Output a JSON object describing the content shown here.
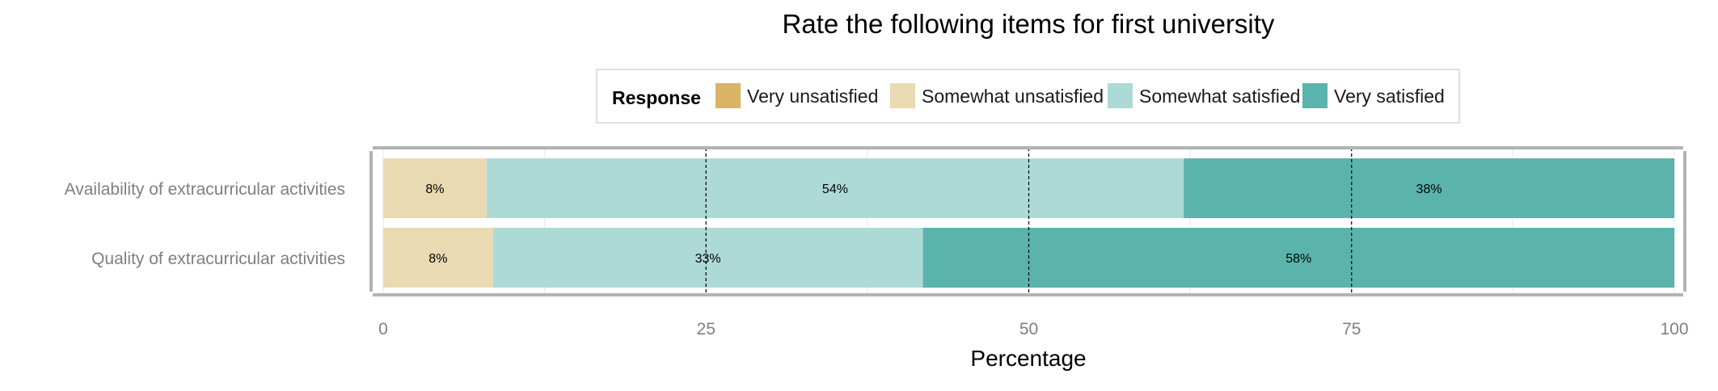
{
  "chart_data": {
    "type": "bar",
    "orientation": "horizontal",
    "stacked": true,
    "title": "Rate the following items for first university",
    "xlabel": "Percentage",
    "ylabel": "",
    "xlim": [
      0,
      100
    ],
    "x_ticks": [
      0,
      25,
      50,
      75,
      100
    ],
    "reference_lines": [
      25,
      50,
      75
    ],
    "grid": true,
    "legend": {
      "title": "Response",
      "position": "top"
    },
    "categories": [
      "Availability of extracurricular activities",
      "Quality of extracurricular activities"
    ],
    "series": [
      {
        "name": "Very unsatisfied",
        "color": "#d9b465",
        "values": [
          0,
          0
        ],
        "labels": [
          "",
          ""
        ]
      },
      {
        "name": "Somewhat unsatisfied",
        "color": "#eadab2",
        "values": [
          8,
          8.5
        ],
        "labels": [
          "8%",
          "8%"
        ]
      },
      {
        "name": "Somewhat satisfied",
        "color": "#aedad6",
        "values": [
          54,
          33.3
        ],
        "labels": [
          "54%",
          "33%"
        ]
      },
      {
        "name": "Very satisfied",
        "color": "#5ab4ac",
        "values": [
          38,
          58.2
        ],
        "labels": [
          "38%",
          "58%"
        ]
      }
    ]
  }
}
